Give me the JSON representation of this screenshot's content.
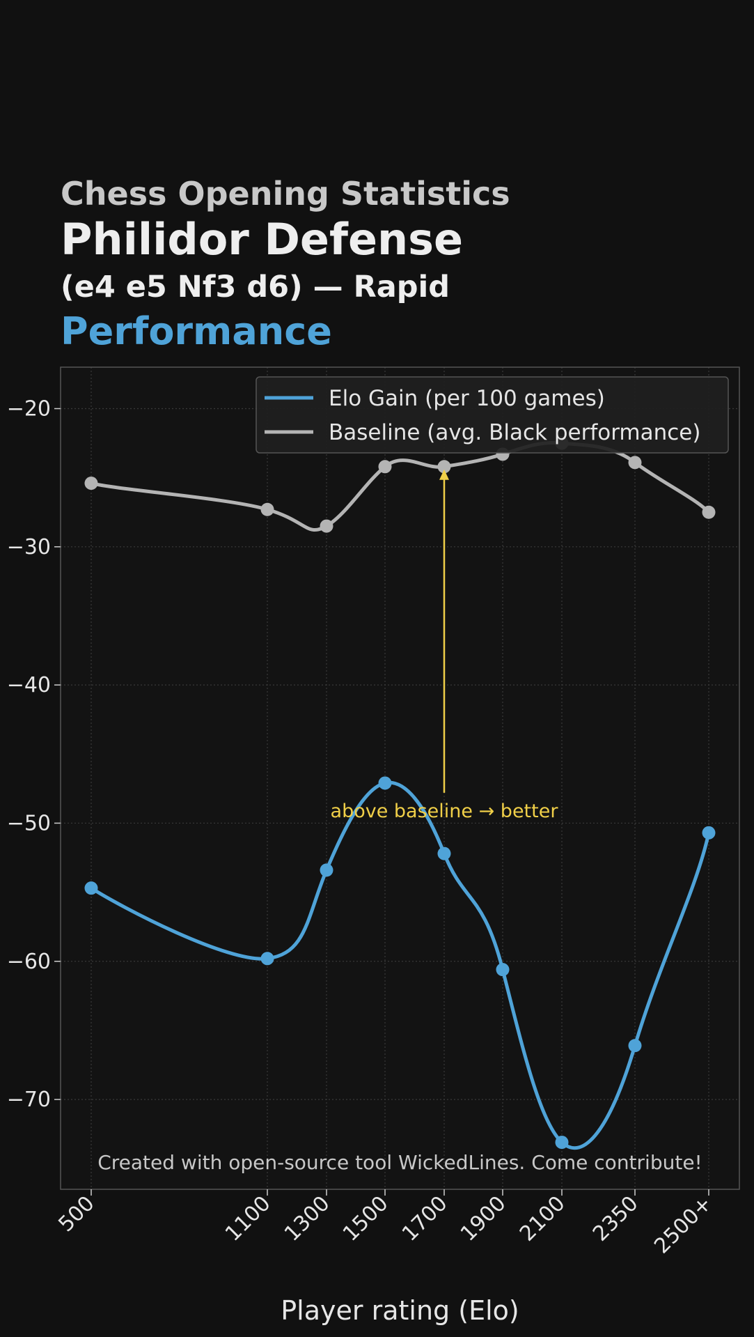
{
  "header": {
    "kicker": "Chess Opening Statistics",
    "title": "Philidor Defense",
    "subtitle": "(e4 e5 Nf3 d6) — Rapid",
    "metric": "Performance"
  },
  "colors": {
    "background": "#111111",
    "elo_series": "#4fa3d8",
    "baseline_series": "#b4b4b4",
    "annotation": "#f0cf48",
    "text": "#e6e6e6"
  },
  "chart_data": {
    "type": "line",
    "x": [
      500,
      1100,
      1300,
      1500,
      1700,
      1900,
      2100,
      2350,
      2500
    ],
    "tick_labels": [
      "500",
      "1100",
      "1300",
      "1500",
      "1700",
      "1900",
      "2100",
      "2350",
      "2500+"
    ],
    "xlabel": "Player rating (Elo)",
    "ylabel": "",
    "ylim": [
      -76.5,
      -17
    ],
    "yticks": [
      -20,
      -30,
      -40,
      -50,
      -60,
      -70
    ],
    "grid": true,
    "legend_position": "top-right",
    "series": [
      {
        "name": "Elo Gain (per 100 games)",
        "values": [
          -54.7,
          -59.8,
          -53.4,
          -47.1,
          -52.2,
          -60.6,
          -73.1,
          -66.1,
          -50.7
        ]
      },
      {
        "name": "Baseline (avg. Black performance)",
        "values": [
          -25.4,
          -27.3,
          -28.5,
          -24.2,
          -24.2,
          -23.3,
          -22.5,
          -23.9,
          -27.5
        ]
      }
    ],
    "annotation": {
      "text": "above baseline → better",
      "x": 1700,
      "y_from": -47.8,
      "y_to": -24.4
    },
    "footer_note": "Created with open-source tool WickedLines. Come contribute!"
  }
}
